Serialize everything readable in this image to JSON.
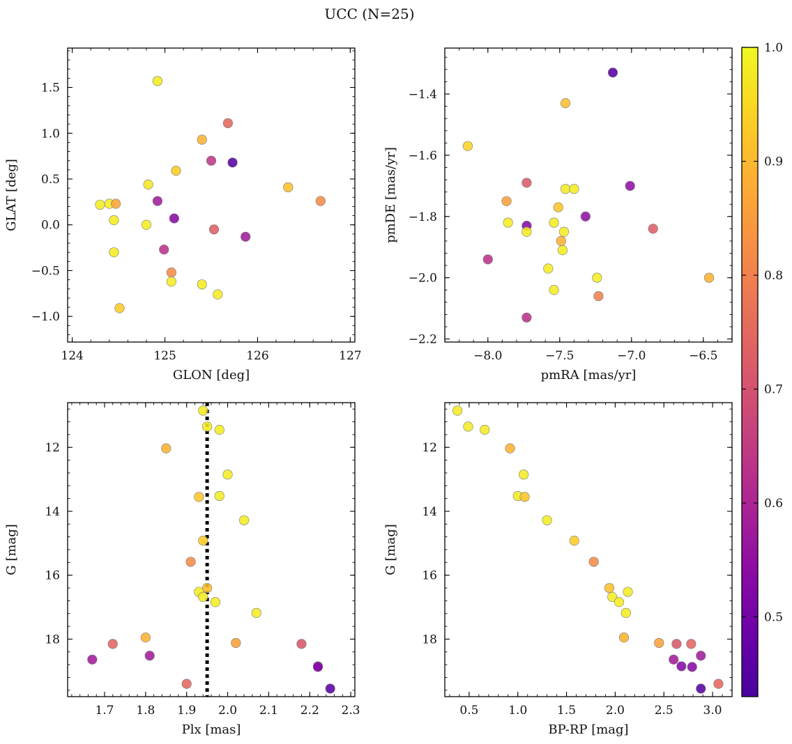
{
  "figure": {
    "title": "UCC (N=25)"
  },
  "colorbar": {
    "range": [
      0.43,
      1.0
    ],
    "ticks": [
      0.5,
      0.6,
      0.7,
      0.8,
      0.9,
      1.0
    ],
    "tick_labels": [
      "0.5",
      "0.6",
      "0.7",
      "0.8",
      "0.9",
      "1.0"
    ],
    "colormap": "plasma"
  },
  "chart_data": [
    {
      "type": "scatter",
      "xlabel": "GLON [deg]",
      "ylabel": "GLAT [deg]",
      "xlim": [
        123.95,
        127.05
      ],
      "ylim": [
        -1.28,
        1.93
      ],
      "xticks": [
        124,
        125,
        126,
        127
      ],
      "xtick_labels": [
        "124",
        "125",
        "126",
        "127"
      ],
      "yticks": [
        -1.0,
        -0.5,
        0.0,
        0.5,
        1.0,
        1.5
      ],
      "ytick_labels": [
        "−1.0",
        "−0.5",
        "0.0",
        "0.5",
        "1.0",
        "1.5"
      ],
      "x": [
        124.92,
        125.68,
        125.4,
        125.12,
        125.5,
        125.73,
        124.82,
        126.33,
        124.92,
        126.68,
        124.3,
        124.4,
        124.47,
        124.45,
        124.8,
        125.1,
        125.53,
        125.87,
        124.99,
        124.45,
        125.07,
        125.07,
        125.4,
        125.57,
        124.51
      ],
      "y": [
        1.57,
        1.11,
        0.93,
        0.59,
        0.7,
        0.68,
        0.44,
        0.41,
        0.26,
        0.26,
        0.22,
        0.23,
        0.23,
        0.05,
        0.0,
        0.07,
        -0.05,
        -0.13,
        -0.27,
        -0.3,
        -0.52,
        -0.62,
        -0.65,
        -0.76,
        -0.91
      ],
      "color_values": [
        0.98,
        0.75,
        0.89,
        0.93,
        0.64,
        0.45,
        0.97,
        0.91,
        0.58,
        0.82,
        0.98,
        0.98,
        0.87,
        0.98,
        0.98,
        0.53,
        0.73,
        0.58,
        0.63,
        0.98,
        0.82,
        0.98,
        0.98,
        0.98,
        0.93
      ]
    },
    {
      "type": "scatter",
      "xlabel": "pmRA [mas/yr]",
      "ylabel": "pmDE [mas/yr]",
      "xlim": [
        -8.3,
        -6.3
      ],
      "ylim": [
        -2.21,
        -1.25
      ],
      "xticks": [
        -8.0,
        -7.5,
        -7.0,
        -6.5
      ],
      "xtick_labels": [
        "−8.0",
        "−7.5",
        "−7.0",
        "−6.5"
      ],
      "yticks": [
        -2.2,
        -2.0,
        -1.8,
        -1.6,
        -1.4
      ],
      "ytick_labels": [
        "−2.2",
        "−2.0",
        "−1.8",
        "−1.6",
        "−1.4"
      ],
      "x": [
        -7.13,
        -7.46,
        -8.14,
        -7.73,
        -7.87,
        -7.46,
        -7.4,
        -7.01,
        -7.51,
        -7.86,
        -7.73,
        -7.32,
        -7.54,
        -6.85,
        -7.73,
        -7.47,
        -7.49,
        -7.48,
        -8.0,
        -7.58,
        -7.54,
        -7.24,
        -6.46,
        -7.23,
        -7.73
      ],
      "y": [
        -1.33,
        -1.43,
        -1.57,
        -1.69,
        -1.75,
        -1.71,
        -1.71,
        -1.7,
        -1.77,
        -1.82,
        -1.83,
        -1.8,
        -1.82,
        -1.84,
        -1.85,
        -1.85,
        -1.88,
        -1.91,
        -1.94,
        -1.97,
        -2.04,
        -2.0,
        -2.0,
        -2.06,
        -2.13
      ],
      "color_values": [
        0.45,
        0.91,
        0.94,
        0.72,
        0.86,
        0.98,
        0.98,
        0.55,
        0.92,
        0.98,
        0.53,
        0.55,
        0.98,
        0.73,
        0.98,
        0.98,
        0.89,
        0.98,
        0.63,
        0.98,
        0.98,
        0.98,
        0.89,
        0.8,
        0.63
      ]
    },
    {
      "type": "scatter",
      "xlabel": "Plx [mas]",
      "ylabel": "G [mag]",
      "xlim": [
        1.61,
        2.31
      ],
      "ylim": [
        19.8,
        10.6
      ],
      "y_inverted": true,
      "xticks": [
        1.7,
        1.8,
        1.9,
        2.0,
        2.1,
        2.2,
        2.3
      ],
      "xtick_labels": [
        "1.7",
        "1.8",
        "1.9",
        "2.0",
        "2.1",
        "2.2",
        "2.3"
      ],
      "yticks": [
        12,
        14,
        16,
        18
      ],
      "ytick_labels": [
        "12",
        "14",
        "16",
        "18"
      ],
      "vline": {
        "x": 1.95,
        "style": "dotted"
      },
      "x": [
        1.94,
        1.95,
        1.98,
        1.85,
        2.0,
        1.93,
        1.98,
        2.04,
        1.94,
        1.91,
        1.95,
        1.93,
        1.94,
        1.97,
        2.07,
        1.8,
        1.72,
        2.02,
        2.18,
        1.67,
        1.81,
        2.22,
        2.22,
        1.9,
        2.25
      ],
      "y": [
        10.85,
        11.35,
        11.45,
        12.03,
        12.85,
        13.55,
        13.52,
        14.28,
        14.92,
        15.58,
        16.4,
        16.52,
        16.68,
        16.84,
        17.18,
        17.95,
        18.15,
        18.12,
        18.15,
        18.64,
        18.52,
        18.85,
        18.87,
        19.4,
        19.55
      ],
      "color_values": [
        0.98,
        0.98,
        0.98,
        0.89,
        0.98,
        0.92,
        0.98,
        0.98,
        0.93,
        0.82,
        0.91,
        0.98,
        0.98,
        0.98,
        0.98,
        0.89,
        0.74,
        0.86,
        0.71,
        0.58,
        0.58,
        0.53,
        0.53,
        0.75,
        0.45
      ]
    },
    {
      "type": "scatter",
      "xlabel": "BP-RP [mag]",
      "ylabel": "G [mag]",
      "xlim": [
        0.25,
        3.2
      ],
      "ylim": [
        19.8,
        10.6
      ],
      "y_inverted": true,
      "xticks": [
        0.5,
        1.0,
        1.5,
        2.0,
        2.5,
        3.0
      ],
      "xtick_labels": [
        "0.5",
        "1.0",
        "1.5",
        "2.0",
        "2.5",
        "3.0"
      ],
      "yticks": [
        12,
        14,
        16,
        18
      ],
      "ytick_labels": [
        "12",
        "14",
        "16",
        "18"
      ],
      "x": [
        0.38,
        0.49,
        0.66,
        0.92,
        1.06,
        1.0,
        1.07,
        1.3,
        1.58,
        1.78,
        1.94,
        2.13,
        1.97,
        2.04,
        2.11,
        2.09,
        2.45,
        2.63,
        2.78,
        2.6,
        2.88,
        2.68,
        2.79,
        3.06,
        2.88
      ],
      "y": [
        10.85,
        11.35,
        11.45,
        12.03,
        12.85,
        13.52,
        13.55,
        14.28,
        14.92,
        15.58,
        16.4,
        16.52,
        16.68,
        16.84,
        17.18,
        17.95,
        18.12,
        18.15,
        18.15,
        18.64,
        18.52,
        18.85,
        18.87,
        19.4,
        19.55
      ],
      "color_values": [
        0.98,
        0.98,
        0.98,
        0.89,
        0.98,
        0.98,
        0.92,
        0.98,
        0.93,
        0.82,
        0.91,
        0.98,
        0.98,
        0.98,
        0.98,
        0.89,
        0.86,
        0.71,
        0.74,
        0.58,
        0.58,
        0.53,
        0.53,
        0.75,
        0.45
      ]
    }
  ]
}
